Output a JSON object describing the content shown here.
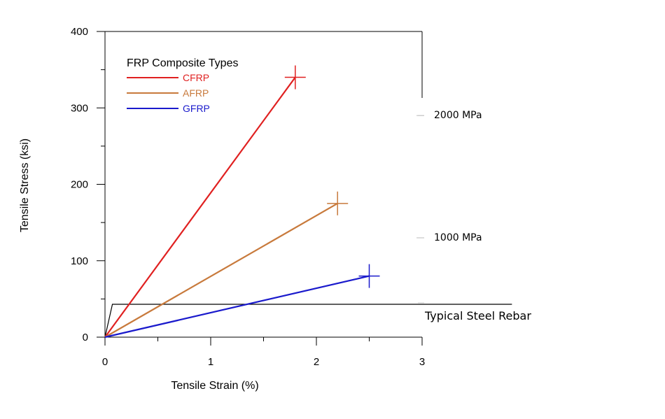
{
  "chart_data": {
    "type": "line",
    "xlabel": "Tensile Strain (%)",
    "ylabel": "Tensile Stress (ksi)",
    "xlim": [
      0,
      3
    ],
    "ylim": [
      0,
      400
    ],
    "x_ticks": [
      "0",
      "1",
      "2",
      "3"
    ],
    "y_ticks": [
      "0",
      "100",
      "200",
      "300",
      "400"
    ],
    "grid": false,
    "legend": {
      "title": "FRP Composite Types",
      "placement": "top-left"
    },
    "series": [
      {
        "name": "CFRP",
        "color": "#e02020",
        "points": [
          [
            0,
            0
          ],
          [
            1.8,
            340
          ]
        ],
        "failure_marker": [
          1.8,
          340
        ]
      },
      {
        "name": "AFRP",
        "color": "#c87a3c",
        "points": [
          [
            0,
            0
          ],
          [
            2.2,
            175
          ]
        ],
        "failure_marker": [
          2.2,
          175
        ]
      },
      {
        "name": "GFRP",
        "color": "#1a1acc",
        "points": [
          [
            0,
            0
          ],
          [
            2.5,
            80
          ]
        ],
        "failure_marker": [
          2.5,
          80
        ]
      }
    ],
    "steel_rebar": {
      "label": "Typical Steel Rebar",
      "color": "#000000",
      "points": [
        [
          0,
          0
        ],
        [
          0.07,
          43
        ],
        [
          3.85,
          43
        ]
      ]
    },
    "secondary_annotations": [
      {
        "label": "2000 MPa",
        "y": 290
      },
      {
        "label": "1000 MPa",
        "y": 130
      }
    ]
  }
}
